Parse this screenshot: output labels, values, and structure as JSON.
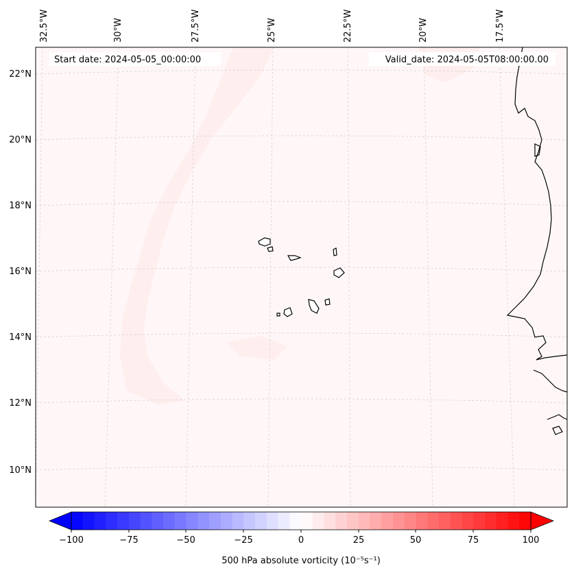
{
  "map": {
    "start_label": "Start date: 2024-05-05_00:00:00",
    "valid_label": "Valid_date: 2024-05-05T08:00:00.00",
    "field_color": "#fff7f7",
    "band_color": "#ffeeee",
    "coast_color": "#000000",
    "grid_color": "#cccccc",
    "lon_labels": [
      "32.5°W",
      "30°W",
      "27.5°W",
      "25°W",
      "22.5°W",
      "20°W",
      "17.5°W"
    ],
    "lat_labels": [
      "22°N",
      "20°N",
      "18°N",
      "16°N",
      "14°N",
      "12°N",
      "10°N"
    ]
  },
  "colorbar": {
    "label": "500 hPa absolute vorticity (10⁻⁵s⁻¹)",
    "vmin": -100,
    "vmax": 100,
    "step": 5,
    "ticks": [
      "−100",
      "−75",
      "−50",
      "−25",
      "0",
      "25",
      "50",
      "75",
      "100"
    ],
    "neg_color": "#0000ff",
    "pos_color": "#ff0000",
    "mid_color": "#ffffff"
  }
}
